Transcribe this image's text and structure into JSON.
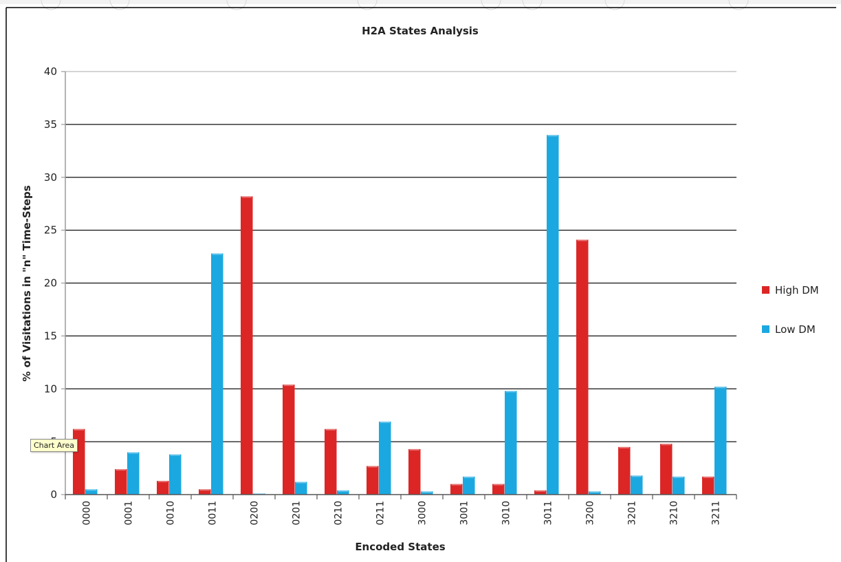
{
  "tooltip": "Chart Area",
  "chart_data": {
    "type": "bar",
    "title": "H2A States Analysis",
    "xlabel": "Encoded States",
    "ylabel": "% of Visitations in \"n\" Time-Steps",
    "categories": [
      "0000",
      "0001",
      "0010",
      "0011",
      "0200",
      "0201",
      "0210",
      "0211",
      "3000",
      "3001",
      "3010",
      "3011",
      "3200",
      "3201",
      "3210",
      "3211"
    ],
    "ylim": [
      0,
      40
    ],
    "yticks": [
      "0",
      "5",
      "10",
      "15",
      "20",
      "25",
      "30",
      "35",
      "40"
    ],
    "grid": true,
    "legend": "right",
    "series": [
      {
        "name": "High DM",
        "color": "#dc2626",
        "values": [
          6.2,
          2.4,
          1.3,
          0.5,
          28.2,
          10.4,
          6.2,
          2.7,
          4.3,
          1.0,
          1.0,
          0.4,
          24.1,
          4.5,
          4.8,
          1.7
        ]
      },
      {
        "name": "Low DM",
        "color": "#1ba8e0",
        "values": [
          0.5,
          4.0,
          3.8,
          22.8,
          0.1,
          1.2,
          0.4,
          6.9,
          0.3,
          1.7,
          9.8,
          34.0,
          0.3,
          1.8,
          1.7,
          10.2
        ]
      }
    ]
  }
}
